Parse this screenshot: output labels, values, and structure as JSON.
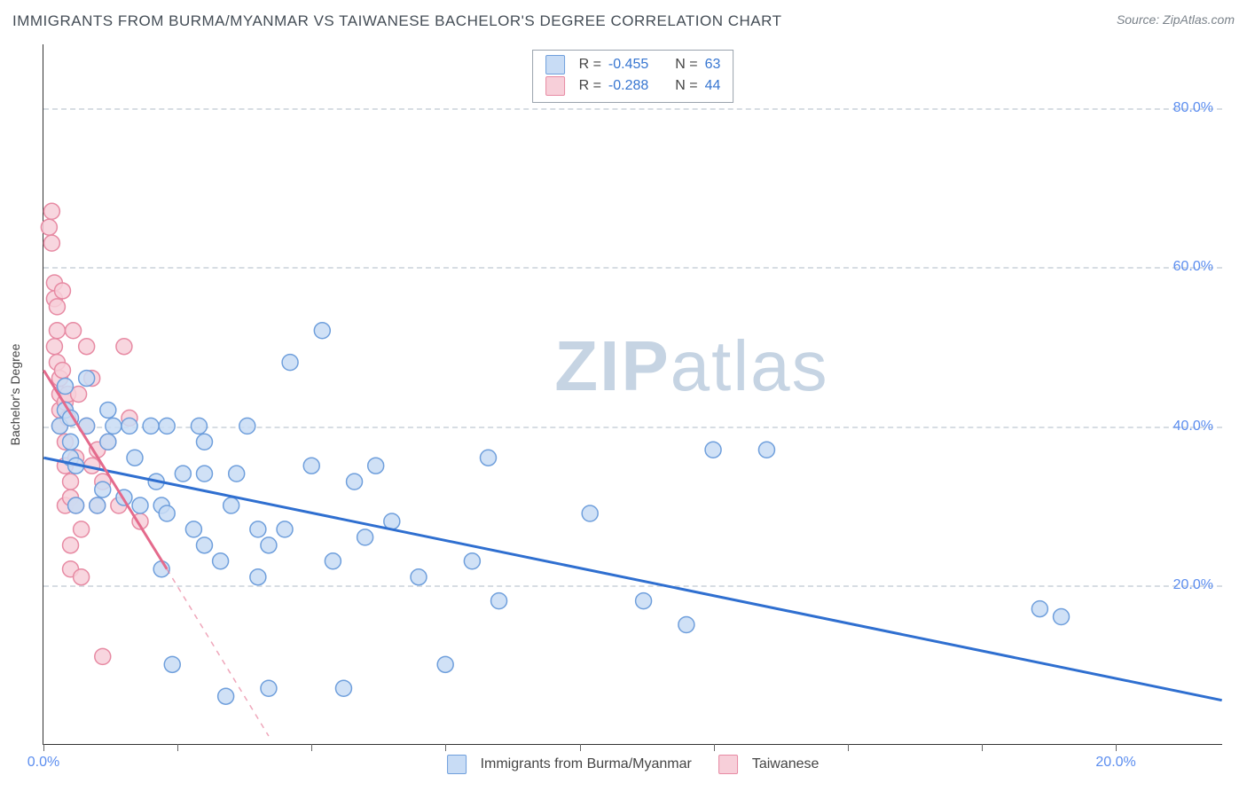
{
  "title": "IMMIGRANTS FROM BURMA/MYANMAR VS TAIWANESE BACHELOR'S DEGREE CORRELATION CHART",
  "source_label": "Source:",
  "source_name": "ZipAtlas.com",
  "watermark_zip": "ZIP",
  "watermark_atlas": "atlas",
  "y_axis_label": "Bachelor's Degree",
  "chart": {
    "type": "scatter",
    "background_color": "#ffffff",
    "grid_color": "#d7dde3",
    "axis_color": "#333333",
    "xlim": [
      0,
      22
    ],
    "ylim": [
      0,
      88
    ],
    "x_ticks": [
      0,
      2.5,
      5,
      7.5,
      10,
      12.5,
      15,
      17.5,
      20
    ],
    "x_tick_labels": {
      "0": "0.0%",
      "20": "20.0%"
    },
    "y_grid": [
      20,
      40,
      60,
      80
    ],
    "y_tick_labels": {
      "20": "20.0%",
      "40": "40.0%",
      "60": "60.0%",
      "80": "80.0%"
    },
    "marker_radius": 9,
    "marker_stroke_width": 1.5,
    "trend_line_width": 3,
    "series": [
      {
        "key": "burma",
        "label": "Immigrants from Burma/Myanmar",
        "fill": "#c8dcf5",
        "stroke": "#6f9fdc",
        "trend_color": "#2f6fd0",
        "R": "-0.455",
        "N": "63",
        "trend": {
          "x1": 0,
          "y1": 36.0,
          "x2": 22,
          "y2": 5.5,
          "dash_after_x": 22
        },
        "points": [
          [
            0.3,
            40
          ],
          [
            0.4,
            42
          ],
          [
            0.4,
            45
          ],
          [
            0.5,
            38
          ],
          [
            0.5,
            41
          ],
          [
            0.5,
            36
          ],
          [
            0.6,
            30
          ],
          [
            0.6,
            35
          ],
          [
            0.8,
            40
          ],
          [
            0.8,
            46
          ],
          [
            1.0,
            30
          ],
          [
            1.1,
            32
          ],
          [
            1.2,
            38
          ],
          [
            1.2,
            42
          ],
          [
            1.3,
            40
          ],
          [
            1.5,
            31
          ],
          [
            1.6,
            40
          ],
          [
            1.7,
            36
          ],
          [
            1.8,
            30
          ],
          [
            2.0,
            40
          ],
          [
            2.1,
            33
          ],
          [
            2.2,
            22
          ],
          [
            2.2,
            30
          ],
          [
            2.3,
            29
          ],
          [
            2.3,
            40
          ],
          [
            2.4,
            10
          ],
          [
            2.6,
            34
          ],
          [
            2.8,
            27
          ],
          [
            2.9,
            40
          ],
          [
            3.0,
            25
          ],
          [
            3.0,
            34
          ],
          [
            3.0,
            38
          ],
          [
            3.3,
            23
          ],
          [
            3.4,
            6
          ],
          [
            3.5,
            30
          ],
          [
            3.6,
            34
          ],
          [
            3.8,
            40
          ],
          [
            4.0,
            27
          ],
          [
            4.0,
            21
          ],
          [
            4.2,
            25
          ],
          [
            4.2,
            7
          ],
          [
            4.5,
            27
          ],
          [
            4.6,
            48
          ],
          [
            5.0,
            35
          ],
          [
            5.2,
            52
          ],
          [
            5.4,
            23
          ],
          [
            5.6,
            7
          ],
          [
            5.8,
            33
          ],
          [
            6.0,
            26
          ],
          [
            6.2,
            35
          ],
          [
            6.5,
            28
          ],
          [
            7.0,
            21
          ],
          [
            7.5,
            10
          ],
          [
            8.0,
            23
          ],
          [
            8.3,
            36
          ],
          [
            8.5,
            18
          ],
          [
            10.2,
            29
          ],
          [
            11.2,
            18
          ],
          [
            12.0,
            15
          ],
          [
            12.5,
            37
          ],
          [
            13.5,
            37
          ],
          [
            18.6,
            17
          ],
          [
            19.0,
            16
          ]
        ]
      },
      {
        "key": "taiwanese",
        "label": "Taiwanese",
        "fill": "#f7cfd9",
        "stroke": "#e78aa3",
        "trend_color": "#e46a8c",
        "R": "-0.288",
        "N": "44",
        "trend": {
          "x1": 0,
          "y1": 47,
          "x2": 2.3,
          "y2": 22,
          "dash_after_x": 2.3,
          "dash_end_x": 4.2,
          "dash_end_y": 1
        },
        "points": [
          [
            0.1,
            65
          ],
          [
            0.15,
            67
          ],
          [
            0.15,
            63
          ],
          [
            0.2,
            58
          ],
          [
            0.2,
            56
          ],
          [
            0.2,
            50
          ],
          [
            0.25,
            55
          ],
          [
            0.25,
            52
          ],
          [
            0.25,
            48
          ],
          [
            0.3,
            44
          ],
          [
            0.3,
            46
          ],
          [
            0.3,
            42
          ],
          [
            0.3,
            40
          ],
          [
            0.35,
            57
          ],
          [
            0.35,
            47
          ],
          [
            0.4,
            43
          ],
          [
            0.4,
            38
          ],
          [
            0.4,
            35
          ],
          [
            0.4,
            30
          ],
          [
            0.45,
            44
          ],
          [
            0.45,
            41
          ],
          [
            0.5,
            33
          ],
          [
            0.5,
            31
          ],
          [
            0.5,
            25
          ],
          [
            0.5,
            22
          ],
          [
            0.55,
            52
          ],
          [
            0.6,
            36
          ],
          [
            0.6,
            30
          ],
          [
            0.65,
            44
          ],
          [
            0.7,
            27
          ],
          [
            0.7,
            21
          ],
          [
            0.8,
            50
          ],
          [
            0.8,
            40
          ],
          [
            0.9,
            46
          ],
          [
            0.9,
            35
          ],
          [
            1.0,
            37
          ],
          [
            1.0,
            30
          ],
          [
            1.1,
            33
          ],
          [
            1.1,
            11
          ],
          [
            1.2,
            38
          ],
          [
            1.4,
            30
          ],
          [
            1.5,
            50
          ],
          [
            1.6,
            41
          ],
          [
            1.8,
            28
          ]
        ]
      }
    ]
  },
  "legend_top": {
    "R_label": "R =",
    "N_label": "N ="
  }
}
